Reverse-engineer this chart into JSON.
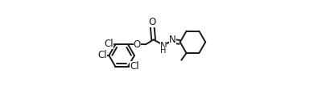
{
  "bg_color": "#ffffff",
  "line_color": "#1a1a1a",
  "line_width": 1.4,
  "font_size": 8.5,
  "figsize": [
    4.0,
    1.38
  ],
  "dpi": 100,
  "xlim": [
    0.0,
    1.0
  ],
  "ylim": [
    0.05,
    0.95
  ]
}
